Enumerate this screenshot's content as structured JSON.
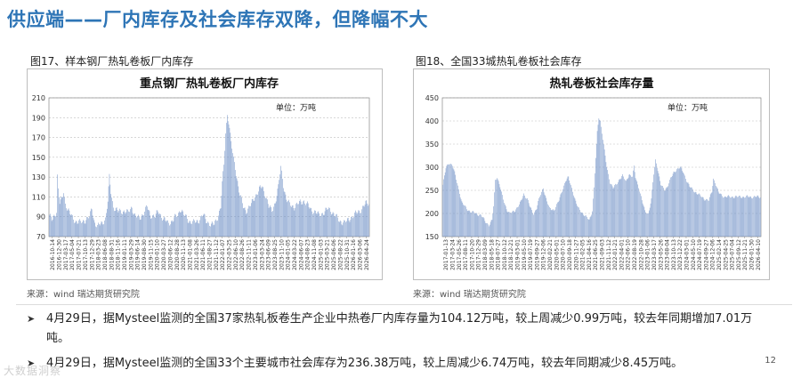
{
  "page": {
    "title": "供应端——厂内库存及社会库存双降，但降幅不大",
    "page_number": "12",
    "watermark": "大数据洞察",
    "bullets": [
      "4月29日，据Mysteel监测的全国37家热轧板卷生产企业中热卷厂内库存量为104.12万吨，较上周减少0.99万吨，较去年同期增加7.01万吨。",
      "4月29日，据Mysteel监测的全国33个主要城市社会库存为236.38万吨，较上周减少6.74万吨，较去年同期减少8.45万吨。"
    ],
    "bullet_mark": "➤"
  },
  "figures": [
    {
      "caption": "图17、样本钢厂热轧卷板厂内库存",
      "source": "来源：wind   瑞达期货研究院"
    },
    {
      "caption": "图18、全国33城热轧卷板社会库存",
      "source": "来源：wind   瑞达期货研究院"
    }
  ],
  "colors": {
    "title": "#2e75b6",
    "bar": "#6f90c6",
    "grid": "#bfbfbf"
  },
  "chart_data": [
    {
      "type": "bar",
      "title": "重点钢厂热轧卷板厂内库存",
      "unit_label": "单位：万吨",
      "ylim": [
        70,
        210
      ],
      "yticks": [
        70,
        90,
        110,
        130,
        150,
        170,
        190,
        210
      ],
      "x_tick_labels": [
        "2016-10-14",
        "2016-12-30",
        "2017-03-17",
        "2017-05-04",
        "2017-07-21",
        "2017-10-13",
        "2017-12-29",
        "2018-03-23",
        "2018-06-08",
        "2018-08-31",
        "2018-11-16",
        "2019-01-11",
        "2019-03-29",
        "2019-06-14",
        "2019-08-30",
        "2019-11-15",
        "2020-01-10",
        "2020-03-27",
        "2020-06-12",
        "2020-08-28",
        "2020-11-13",
        "2021-01-08",
        "2021-03-26",
        "2021-06-11",
        "2021-08-27",
        "2021-11-12",
        "2022-01-07",
        "2022-03-25",
        "2022-06-10",
        "2022-08-26",
        "2022-11-11",
        "2023-01-06",
        "2023-03-24",
        "2023-06-09",
        "2023-08-25",
        "2023-11-10",
        "2024-01-05",
        "2024-03-22",
        "2024-06-07",
        "2024-08-23",
        "2024-11-08",
        "2025-01-03",
        "2025-03-21",
        "2025-06-06",
        "2025-08-22",
        "2025-10-31",
        "2026-01-16",
        "2026-03-06",
        "2026-04-24"
      ],
      "anchors": [
        [
          0,
          92
        ],
        [
          3,
          86
        ],
        [
          6,
          90
        ],
        [
          9,
          96
        ],
        [
          10,
          132
        ],
        [
          11,
          118
        ],
        [
          13,
          104
        ],
        [
          16,
          108
        ],
        [
          18,
          115
        ],
        [
          20,
          103
        ],
        [
          24,
          96
        ],
        [
          28,
          90
        ],
        [
          32,
          86
        ],
        [
          38,
          84
        ],
        [
          44,
          86
        ],
        [
          50,
          90
        ],
        [
          53,
          98
        ],
        [
          56,
          86
        ],
        [
          60,
          80
        ],
        [
          66,
          84
        ],
        [
          70,
          88
        ],
        [
          73,
          105
        ],
        [
          75,
          130
        ],
        [
          77,
          115
        ],
        [
          80,
          100
        ],
        [
          86,
          95
        ],
        [
          92,
          96
        ],
        [
          98,
          94
        ],
        [
          103,
          100
        ],
        [
          106,
          92
        ],
        [
          112,
          88
        ],
        [
          118,
          94
        ],
        [
          122,
          100
        ],
        [
          126,
          92
        ],
        [
          132,
          90
        ],
        [
          136,
          96
        ],
        [
          142,
          88
        ],
        [
          148,
          84
        ],
        [
          154,
          86
        ],
        [
          160,
          92
        ],
        [
          164,
          98
        ],
        [
          168,
          92
        ],
        [
          174,
          86
        ],
        [
          180,
          84
        ],
        [
          186,
          86
        ],
        [
          192,
          92
        ],
        [
          196,
          86
        ],
        [
          202,
          82
        ],
        [
          206,
          82
        ],
        [
          210,
          90
        ],
        [
          214,
          100
        ],
        [
          216,
          123
        ],
        [
          218,
          142
        ],
        [
          220,
          175
        ],
        [
          222,
          193
        ],
        [
          224,
          186
        ],
        [
          227,
          165
        ],
        [
          230,
          148
        ],
        [
          234,
          130
        ],
        [
          238,
          112
        ],
        [
          242,
          100
        ],
        [
          246,
          96
        ],
        [
          250,
          100
        ],
        [
          254,
          106
        ],
        [
          258,
          112
        ],
        [
          262,
          118
        ],
        [
          266,
          120
        ],
        [
          270,
          112
        ],
        [
          274,
          100
        ],
        [
          278,
          96
        ],
        [
          282,
          105
        ],
        [
          286,
          120
        ],
        [
          289,
          140
        ],
        [
          292,
          122
        ],
        [
          296,
          108
        ],
        [
          300,
          102
        ],
        [
          306,
          100
        ],
        [
          312,
          104
        ],
        [
          318,
          106
        ],
        [
          322,
          102
        ],
        [
          326,
          98
        ],
        [
          330,
          96
        ],
        [
          336,
          92
        ],
        [
          342,
          94
        ],
        [
          348,
          98
        ],
        [
          352,
          96
        ],
        [
          358,
          90
        ],
        [
          362,
          86
        ],
        [
          368,
          84
        ],
        [
          372,
          86
        ],
        [
          378,
          90
        ],
        [
          384,
          94
        ],
        [
          390,
          98
        ],
        [
          396,
          104
        ]
      ]
    },
    {
      "type": "bar",
      "title": "热轧卷板社会库存量",
      "unit_label": "单位：万吨",
      "ylim": [
        150,
        450
      ],
      "yticks": [
        150,
        200,
        250,
        300,
        350,
        400,
        450
      ],
      "x_tick_labels": [
        "2017-01-13",
        "2017-03-24",
        "2017-05-26",
        "2017-08-11",
        "2017-10-20",
        "2017-12-29",
        "2018-03-09",
        "2018-05-18",
        "2018-07-27",
        "2018-10-12",
        "2018-12-21",
        "2019-03-01",
        "2019-05-10",
        "2019-07-19",
        "2019-09-27",
        "2019-12-06",
        "2020-02-21",
        "2020-05-01",
        "2020-07-10",
        "2020-09-18",
        "2020-11-27",
        "2021-02-05",
        "2021-04-16",
        "2021-06-25",
        "2021-09-03",
        "2021-11-12",
        "2022-01-21",
        "2022-04-01",
        "2022-06-10",
        "2022-08-19",
        "2022-10-28",
        "2023-01-06",
        "2023-03-17",
        "2023-05-26",
        "2023-08-04",
        "2023-10-13",
        "2023-12-22",
        "2024-03-01",
        "2024-05-10",
        "2024-07-19",
        "2024-09-27",
        "2024-12-06",
        "2025-02-14",
        "2025-04-25",
        "2025-07-04",
        "2025-09-12",
        "2025-11-21",
        "2026-01-30",
        "2026-04-10"
      ],
      "anchors": [
        [
          0,
          262
        ],
        [
          4,
          298
        ],
        [
          8,
          310
        ],
        [
          12,
          304
        ],
        [
          16,
          282
        ],
        [
          20,
          252
        ],
        [
          24,
          224
        ],
        [
          30,
          210
        ],
        [
          36,
          203
        ],
        [
          42,
          200
        ],
        [
          48,
          196
        ],
        [
          54,
          182
        ],
        [
          58,
          175
        ],
        [
          62,
          185
        ],
        [
          64,
          215
        ],
        [
          66,
          272
        ],
        [
          68,
          280
        ],
        [
          72,
          258
        ],
        [
          76,
          230
        ],
        [
          80,
          210
        ],
        [
          84,
          200
        ],
        [
          90,
          205
        ],
        [
          94,
          214
        ],
        [
          98,
          225
        ],
        [
          102,
          242
        ],
        [
          106,
          232
        ],
        [
          110,
          212
        ],
        [
          114,
          200
        ],
        [
          118,
          212
        ],
        [
          122,
          236
        ],
        [
          126,
          255
        ],
        [
          130,
          232
        ],
        [
          134,
          210
        ],
        [
          140,
          208
        ],
        [
          146,
          228
        ],
        [
          150,
          250
        ],
        [
          154,
          270
        ],
        [
          158,
          278
        ],
        [
          162,
          255
        ],
        [
          166,
          230
        ],
        [
          170,
          212
        ],
        [
          176,
          200
        ],
        [
          180,
          192
        ],
        [
          184,
          186
        ],
        [
          188,
          206
        ],
        [
          190,
          255
        ],
        [
          192,
          320
        ],
        [
          194,
          375
        ],
        [
          196,
          408
        ],
        [
          198,
          400
        ],
        [
          200,
          375
        ],
        [
          203,
          335
        ],
        [
          206,
          300
        ],
        [
          210,
          268
        ],
        [
          214,
          255
        ],
        [
          218,
          262
        ],
        [
          222,
          275
        ],
        [
          226,
          282
        ],
        [
          230,
          268
        ],
        [
          234,
          285
        ],
        [
          238,
          280
        ],
        [
          240,
          300
        ],
        [
          242,
          278
        ],
        [
          246,
          258
        ],
        [
          250,
          228
        ],
        [
          254,
          205
        ],
        [
          258,
          200
        ],
        [
          262,
          230
        ],
        [
          265,
          285
        ],
        [
          267,
          315
        ],
        [
          270,
          295
        ],
        [
          274,
          262
        ],
        [
          278,
          250
        ],
        [
          282,
          258
        ],
        [
          286,
          275
        ],
        [
          290,
          288
        ],
        [
          294,
          296
        ],
        [
          298,
          300
        ],
        [
          302,
          290
        ],
        [
          306,
          272
        ],
        [
          310,
          258
        ],
        [
          316,
          248
        ],
        [
          322,
          240
        ],
        [
          328,
          232
        ],
        [
          334,
          228
        ],
        [
          338,
          248
        ],
        [
          340,
          275
        ],
        [
          342,
          268
        ],
        [
          346,
          245
        ],
        [
          350,
          240
        ],
        [
          354,
          236
        ]
      ]
    }
  ]
}
